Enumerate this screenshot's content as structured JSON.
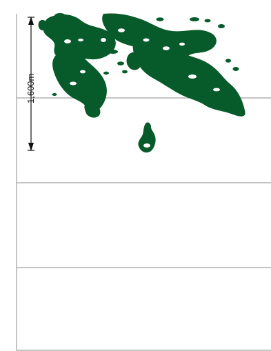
{
  "map": {
    "scale_bar": {
      "label": "1,600m"
    },
    "colors": {
      "forest": "#075b2a",
      "grid": "#8a8a8a",
      "frame": "#7a7a7a",
      "background": "#ffffff"
    }
  }
}
